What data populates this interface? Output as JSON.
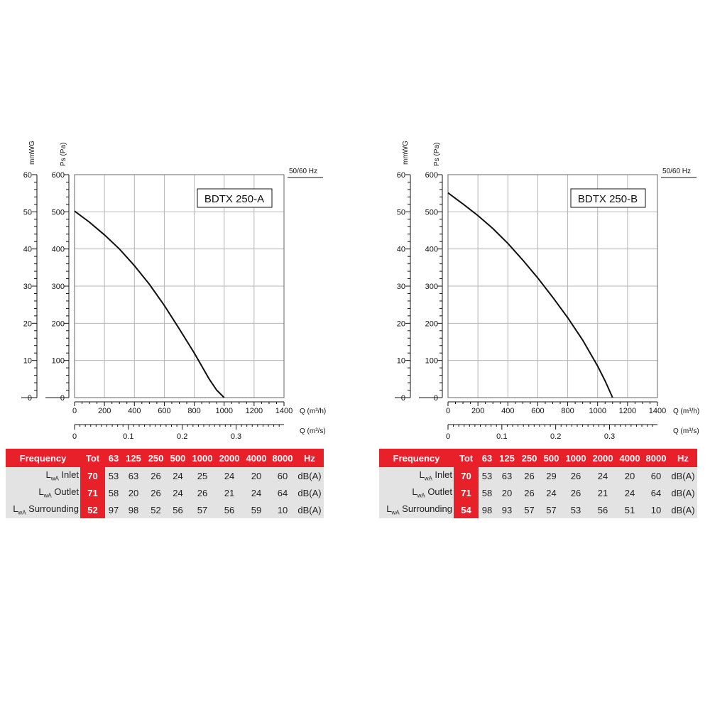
{
  "charts": [
    {
      "model_label": "BDTX 250-A",
      "freq_label": "50/60 Hz",
      "y_left_unit": "mmWG",
      "y_right_unit": "Ps (Pa)",
      "x_unit_top": "Q (m³/h)",
      "x_unit_bottom": "Q (m³/s)",
      "x_ticks": [
        "0",
        "200",
        "400",
        "600",
        "800",
        "1000",
        "1200",
        "1400"
      ],
      "x2_ticks": [
        "0",
        "0.1",
        "0.2",
        "0.3"
      ],
      "y_pa_ticks": [
        "0",
        "100",
        "200",
        "300",
        "400",
        "500",
        "600"
      ],
      "y_mm_ticks": [
        "0",
        "10",
        "20",
        "30",
        "40",
        "50",
        "60"
      ],
      "table": {
        "header": [
          "Frequency",
          "Tot",
          "63",
          "125",
          "250",
          "500",
          "1000",
          "2000",
          "4000",
          "8000",
          "Hz"
        ],
        "rows": [
          {
            "label_main": "L",
            "label_sub": "wA",
            "label_rest": " Inlet",
            "tot": "70",
            "values": [
              "53",
              "63",
              "26",
              "24",
              "25",
              "24",
              "20",
              "60"
            ],
            "unit": "dB(A)"
          },
          {
            "label_main": "L",
            "label_sub": "wA",
            "label_rest": " Outlet",
            "tot": "71",
            "values": [
              "58",
              "20",
              "26",
              "24",
              "26",
              "21",
              "24",
              "64"
            ],
            "unit": "dB(A)"
          },
          {
            "label_main": "L",
            "label_sub": "wA",
            "label_rest": " Surrounding",
            "tot": "52",
            "values": [
              "97",
              "98",
              "52",
              "56",
              "57",
              "56",
              "59",
              "10"
            ],
            "unit": "dB(A)"
          }
        ]
      }
    },
    {
      "model_label": "BDTX 250-B",
      "freq_label": "50/60 Hz",
      "y_left_unit": "mmWG",
      "y_right_unit": "Ps (Pa)",
      "x_unit_top": "Q (m³/h)",
      "x_unit_bottom": "Q (m³/s)",
      "x_ticks": [
        "0",
        "200",
        "400",
        "600",
        "800",
        "1000",
        "1200",
        "1400"
      ],
      "x2_ticks": [
        "0",
        "0.1",
        "0.2",
        "0.3"
      ],
      "y_pa_ticks": [
        "0",
        "100",
        "200",
        "300",
        "400",
        "500",
        "600"
      ],
      "y_mm_ticks": [
        "0",
        "10",
        "20",
        "30",
        "40",
        "50",
        "60"
      ],
      "table": {
        "header": [
          "Frequency",
          "Tot",
          "63",
          "125",
          "250",
          "500",
          "1000",
          "2000",
          "4000",
          "8000",
          "Hz"
        ],
        "rows": [
          {
            "label_main": "L",
            "label_sub": "wA",
            "label_rest": " Inlet",
            "tot": "70",
            "values": [
              "53",
              "63",
              "26",
              "29",
              "26",
              "24",
              "20",
              "60"
            ],
            "unit": "dB(A)"
          },
          {
            "label_main": "L",
            "label_sub": "wA",
            "label_rest": " Outlet",
            "tot": "71",
            "values": [
              "58",
              "20",
              "26",
              "24",
              "26",
              "21",
              "24",
              "64"
            ],
            "unit": "dB(A)"
          },
          {
            "label_main": "L",
            "label_sub": "wA",
            "label_rest": " Surrounding",
            "tot": "54",
            "values": [
              "98",
              "93",
              "57",
              "57",
              "53",
              "56",
              "51",
              "10"
            ],
            "unit": "dB(A)"
          }
        ]
      }
    }
  ],
  "chart_data": [
    {
      "type": "line",
      "title": "BDTX 250-A",
      "xlabel": "Q (m³/h)",
      "ylabel": "Ps (Pa)",
      "xlim": [
        0,
        1400
      ],
      "ylim": [
        0,
        600
      ],
      "secondary_y": {
        "label": "mmWG",
        "lim": [
          0,
          60
        ]
      },
      "secondary_x": {
        "label": "Q (m³/s)",
        "lim": [
          0,
          0.389
        ]
      },
      "grid": true,
      "series": [
        {
          "x": [
            0,
            100,
            200,
            300,
            400,
            500,
            600,
            700,
            800,
            900,
            950,
            1000
          ],
          "y": [
            502,
            472,
            438,
            400,
            355,
            305,
            248,
            185,
            120,
            50,
            20,
            0
          ]
        }
      ]
    },
    {
      "type": "line",
      "title": "BDTX 250-B",
      "xlabel": "Q (m³/h)",
      "ylabel": "Ps (Pa)",
      "xlim": [
        0,
        1400
      ],
      "ylim": [
        0,
        600
      ],
      "secondary_y": {
        "label": "mmWG",
        "lim": [
          0,
          60
        ]
      },
      "secondary_x": {
        "label": "Q (m³/s)",
        "lim": [
          0,
          0.389
        ]
      },
      "grid": true,
      "series": [
        {
          "x": [
            0,
            100,
            200,
            300,
            400,
            500,
            600,
            700,
            800,
            900,
            1000,
            1050,
            1100
          ],
          "y": [
            551,
            521,
            490,
            455,
            415,
            370,
            322,
            270,
            215,
            155,
            85,
            45,
            0
          ]
        }
      ]
    }
  ]
}
